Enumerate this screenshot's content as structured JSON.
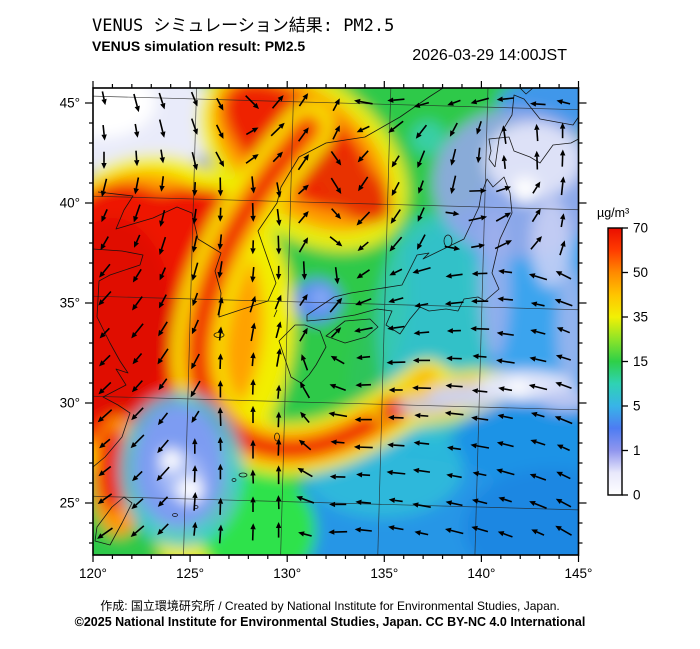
{
  "header": {
    "title_jp": "VENUS シミュレーション結果: PM2.5",
    "title_en": "VENUS simulation result: PM2.5",
    "datetime": "2026-03-29 14:00JST"
  },
  "footer": {
    "credit": "作成: 国立環境研究所 / Created by National Institute for Environmental Studies, Japan.",
    "copyright": "©2025 National Institute for Environmental Studies, Japan. CC BY-NC 4.0 International"
  },
  "chart_data": {
    "type": "heatmap",
    "title": "VENUS simulation result: PM2.5",
    "title_jp": "VENUS シミュレーション結果: PM2.5",
    "datetime": "2026-03-29 14:00JST",
    "variable": "PM2.5 surface concentration with wind vectors",
    "region": "East Asia (120E-145E, 25N-45N)",
    "colorbar": {
      "label": "µg/m³",
      "orientation": "vertical",
      "tick_values": [
        0,
        1,
        5,
        15,
        35,
        50,
        70
      ],
      "tick_colors": [
        "#ffffff",
        "#9096ee",
        "#38b4e8",
        "#2ed048",
        "#f2f005",
        "#ff8a00",
        "#ea0e00"
      ],
      "value_range": [
        0,
        70
      ]
    },
    "x_axis": {
      "label": "longitude",
      "tick_labels": [
        "120°",
        "125°",
        "130°",
        "135°",
        "140°",
        "145°"
      ],
      "tick_values": [
        120,
        125,
        130,
        135,
        140,
        145
      ],
      "minor_step_deg": 1,
      "range": [
        120,
        145
      ]
    },
    "y_axis": {
      "label": "latitude",
      "tick_labels": [
        "45°",
        "40°",
        "35°",
        "30°",
        "25°"
      ],
      "tick_values": [
        45,
        40,
        35,
        30,
        25
      ],
      "minor_step_deg": 1,
      "range": [
        25,
        45
      ]
    },
    "field_summary": [
      {
        "area": "NW continent / Yellow Sea",
        "value_ugm3": "55-70+",
        "color": "red high-PM2.5 plume with curved frontal band"
      },
      {
        "area": "NE China plume to 130E/44N",
        "value_ugm3": "50-70",
        "color": "red/orange"
      },
      {
        "area": "Mongolia top-left corner",
        "value_ugm3": "0-1",
        "color": "white/pale"
      },
      {
        "area": "Korea / Japan Sea / W Japan",
        "value_ugm3": "10-25",
        "color": "green"
      },
      {
        "area": "Pacific east of Japan",
        "value_ugm3": "1-5",
        "color": "blue with white 0-1 patches near Hokkaido and S of Honshu"
      },
      {
        "area": "East China Sea patch 123E/27N",
        "value_ugm3": "0-1",
        "color": "white/pale blue"
      }
    ],
    "wind": {
      "marker": "arrow",
      "color": "#000000",
      "grid_cols": 17,
      "grid_rows": 16,
      "angles_deg_0east_90up": [
        [
          282,
          285,
          288,
          292,
          298,
          315,
          50,
          56,
          62,
          170,
          185,
          196,
          200,
          195,
          186,
          176,
          166
        ],
        [
          276,
          280,
          284,
          289,
          296,
          30,
          44,
          54,
          64,
          205,
          218,
          232,
          242,
          252,
          98,
          94,
          90
        ],
        [
          270,
          274,
          279,
          284,
          298,
          36,
          46,
          56,
          305,
          228,
          238,
          248,
          256,
          264,
          96,
          92,
          88
        ],
        [
          256,
          259,
          263,
          267,
          271,
          276,
          281,
          42,
          302,
          236,
          242,
          250,
          257,
          2,
          18,
          58,
          84
        ],
        [
          246,
          251,
          256,
          262,
          268,
          272,
          277,
          50,
          312,
          226,
          236,
          246,
          352,
          12,
          30,
          58,
          80
        ],
        [
          240,
          246,
          252,
          258,
          264,
          268,
          272,
          60,
          322,
          220,
          230,
          242,
          350,
          10,
          26,
          50,
          72
        ],
        [
          231,
          238,
          246,
          254,
          261,
          265,
          269,
          273,
          277,
          214,
          206,
          196,
          188,
          182,
          173,
          163,
          153
        ],
        [
          228,
          234,
          242,
          250,
          78,
          73,
          68,
          56,
          50,
          201,
          196,
          191,
          186,
          180,
          175,
          168,
          160
        ],
        [
          226,
          231,
          238,
          246,
          84,
          80,
          75,
          60,
          46,
          191,
          188,
          185,
          182,
          178,
          172,
          165,
          158
        ],
        [
          225,
          230,
          236,
          242,
          88,
          85,
          80,
          110,
          150,
          185,
          182,
          180,
          178,
          175,
          171,
          167,
          162
        ],
        [
          224,
          228,
          234,
          240,
          90,
          88,
          85,
          120,
          160,
          182,
          180,
          178,
          176,
          174,
          170,
          166,
          160
        ],
        [
          222,
          226,
          232,
          238,
          92,
          90,
          88,
          130,
          170,
          180,
          178,
          176,
          174,
          172,
          168,
          164,
          158
        ],
        [
          220,
          225,
          230,
          90,
          92,
          90,
          88,
          140,
          175,
          178,
          176,
          174,
          172,
          170,
          166,
          162,
          156
        ],
        [
          218,
          224,
          228,
          88,
          90,
          92,
          90,
          150,
          178,
          176,
          174,
          172,
          170,
          168,
          164,
          160,
          154
        ],
        [
          216,
          222,
          226,
          86,
          88,
          90,
          92,
          160,
          180,
          175,
          172,
          170,
          168,
          166,
          162,
          158,
          152
        ],
        [
          215,
          220,
          225,
          84,
          86,
          88,
          90,
          165,
          182,
          174,
          170,
          168,
          166,
          164,
          160,
          156,
          150
        ]
      ]
    },
    "grid": "graticule every 5 deg, minor ticks every 1 deg, slightly rotated conic look",
    "legend_position": "right"
  }
}
